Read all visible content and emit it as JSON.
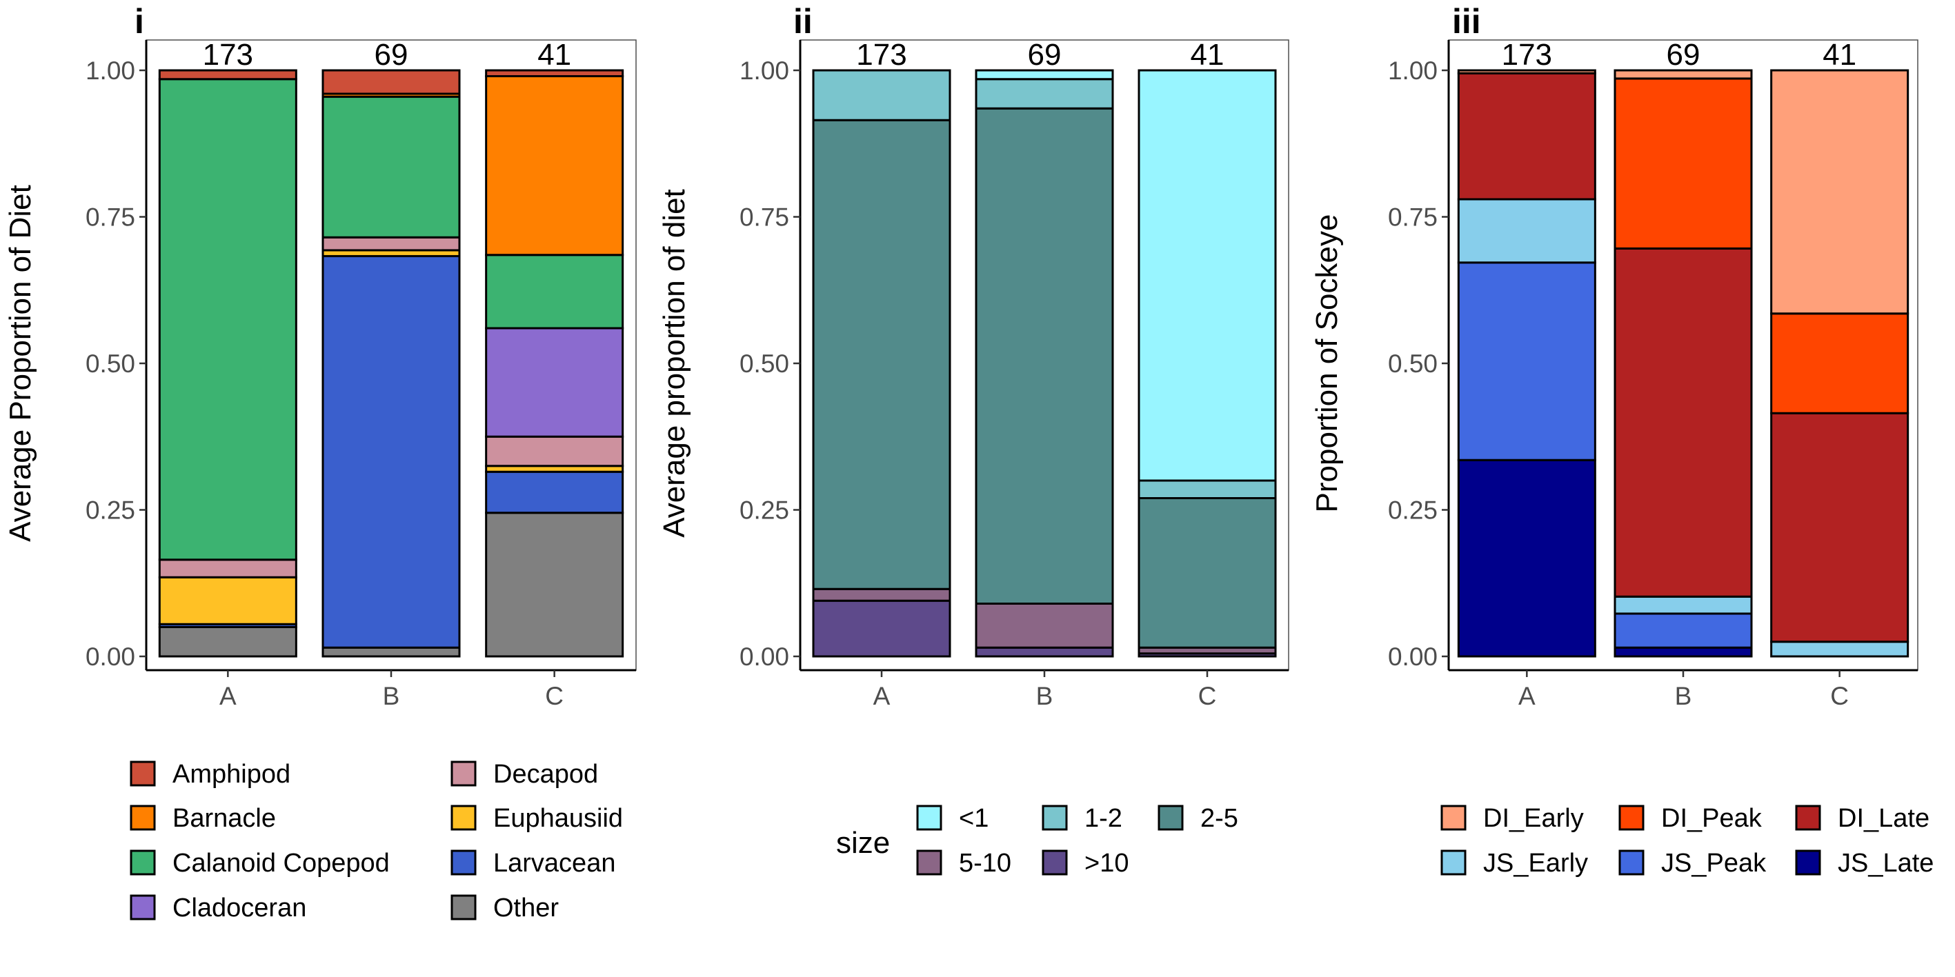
{
  "chart_data": [
    {
      "type": "bar",
      "stacked": true,
      "panel_label": "i",
      "title": "",
      "xlabel": "",
      "ylabel": "Average Proportion of Diet",
      "ylim": [
        0,
        1
      ],
      "yticks": [
        "0.00",
        "0.25",
        "0.50",
        "0.75",
        "1.00"
      ],
      "categories": [
        "A",
        "B",
        "C"
      ],
      "counts": [
        "173",
        "69",
        "41"
      ],
      "legend": {
        "title": "",
        "position": "bottom",
        "columns": 2
      },
      "series": [
        {
          "name": "Other",
          "color": "#808080",
          "values": [
            0.05,
            0.015,
            0.245
          ]
        },
        {
          "name": "Larvacean",
          "color": "#3A5FCD",
          "values": [
            0.005,
            0.668,
            0.07
          ]
        },
        {
          "name": "Euphausiid",
          "color": "#FFC125",
          "values": [
            0.08,
            0.01,
            0.01
          ]
        },
        {
          "name": "Decapod",
          "color": "#CD919E",
          "values": [
            0.03,
            0.022,
            0.05
          ]
        },
        {
          "name": "Cladoceran",
          "color": "#8B6BCF",
          "values": [
            0.0,
            0.0,
            0.185
          ]
        },
        {
          "name": "Calanoid Copepod",
          "color": "#3CB371",
          "values": [
            0.82,
            0.24,
            0.125
          ]
        },
        {
          "name": "Barnacle",
          "color": "#FF8000",
          "values": [
            0.0,
            0.005,
            0.305
          ]
        },
        {
          "name": "Amphipod",
          "color": "#CD4F39",
          "values": [
            0.015,
            0.04,
            0.01
          ]
        }
      ],
      "legend_order": [
        "Amphipod",
        "Barnacle",
        "Calanoid Copepod",
        "Cladoceran",
        "Decapod",
        "Euphausiid",
        "Larvacean",
        "Other"
      ]
    },
    {
      "type": "bar",
      "stacked": true,
      "panel_label": "ii",
      "title": "",
      "xlabel": "",
      "ylabel": "Average proportion of diet",
      "ylim": [
        0,
        1
      ],
      "yticks": [
        "0.00",
        "0.25",
        "0.50",
        "0.75",
        "1.00"
      ],
      "categories": [
        "A",
        "B",
        "C"
      ],
      "counts": [
        "173",
        "69",
        "41"
      ],
      "legend": {
        "title": "size",
        "position": "bottom",
        "columns": 3
      },
      "series": [
        {
          "name": ">10",
          "color": "#5E4A8B",
          "values": [
            0.095,
            0.015,
            0.005
          ]
        },
        {
          "name": "5-10",
          "color": "#8B6686",
          "values": [
            0.02,
            0.075,
            0.01
          ]
        },
        {
          "name": "2-5",
          "color": "#528B8B",
          "values": [
            0.8,
            0.845,
            0.255
          ]
        },
        {
          "name": "1-2",
          "color": "#7AC5CD",
          "values": [
            0.085,
            0.05,
            0.03
          ]
        },
        {
          "name": "<1",
          "color": "#98F5FF",
          "values": [
            0.0,
            0.015,
            0.7
          ]
        }
      ],
      "legend_order": [
        "<1",
        "1-2",
        "2-5",
        "5-10",
        ">10"
      ]
    },
    {
      "type": "bar",
      "stacked": true,
      "panel_label": "iii",
      "title": "",
      "xlabel": "",
      "ylabel": "Proportion of Sockeye",
      "ylim": [
        0,
        1
      ],
      "yticks": [
        "0.00",
        "0.25",
        "0.50",
        "0.75",
        "1.00"
      ],
      "categories": [
        "A",
        "B",
        "C"
      ],
      "counts": [
        "173",
        "69",
        "41"
      ],
      "legend": {
        "title": "",
        "position": "bottom",
        "columns": 3
      },
      "series": [
        {
          "name": "JS_Late",
          "color": "#00008B",
          "values": [
            0.335,
            0.015,
            0.0
          ]
        },
        {
          "name": "JS_Peak",
          "color": "#4169E1",
          "values": [
            0.337,
            0.058,
            0.0
          ]
        },
        {
          "name": "JS_Early",
          "color": "#87CEEB",
          "values": [
            0.108,
            0.029,
            0.025
          ]
        },
        {
          "name": "DI_Late",
          "color": "#B22222",
          "values": [
            0.215,
            0.594,
            0.39
          ]
        },
        {
          "name": "DI_Peak",
          "color": "#FF4500",
          "values": [
            0.0,
            0.29,
            0.17
          ]
        },
        {
          "name": "DI_Early",
          "color": "#FFA07A",
          "values": [
            0.005,
            0.014,
            0.415
          ]
        }
      ],
      "legend_order": [
        "DI_Early",
        "DI_Peak",
        "DI_Late",
        "JS_Early",
        "JS_Peak",
        "JS_Late"
      ]
    }
  ]
}
